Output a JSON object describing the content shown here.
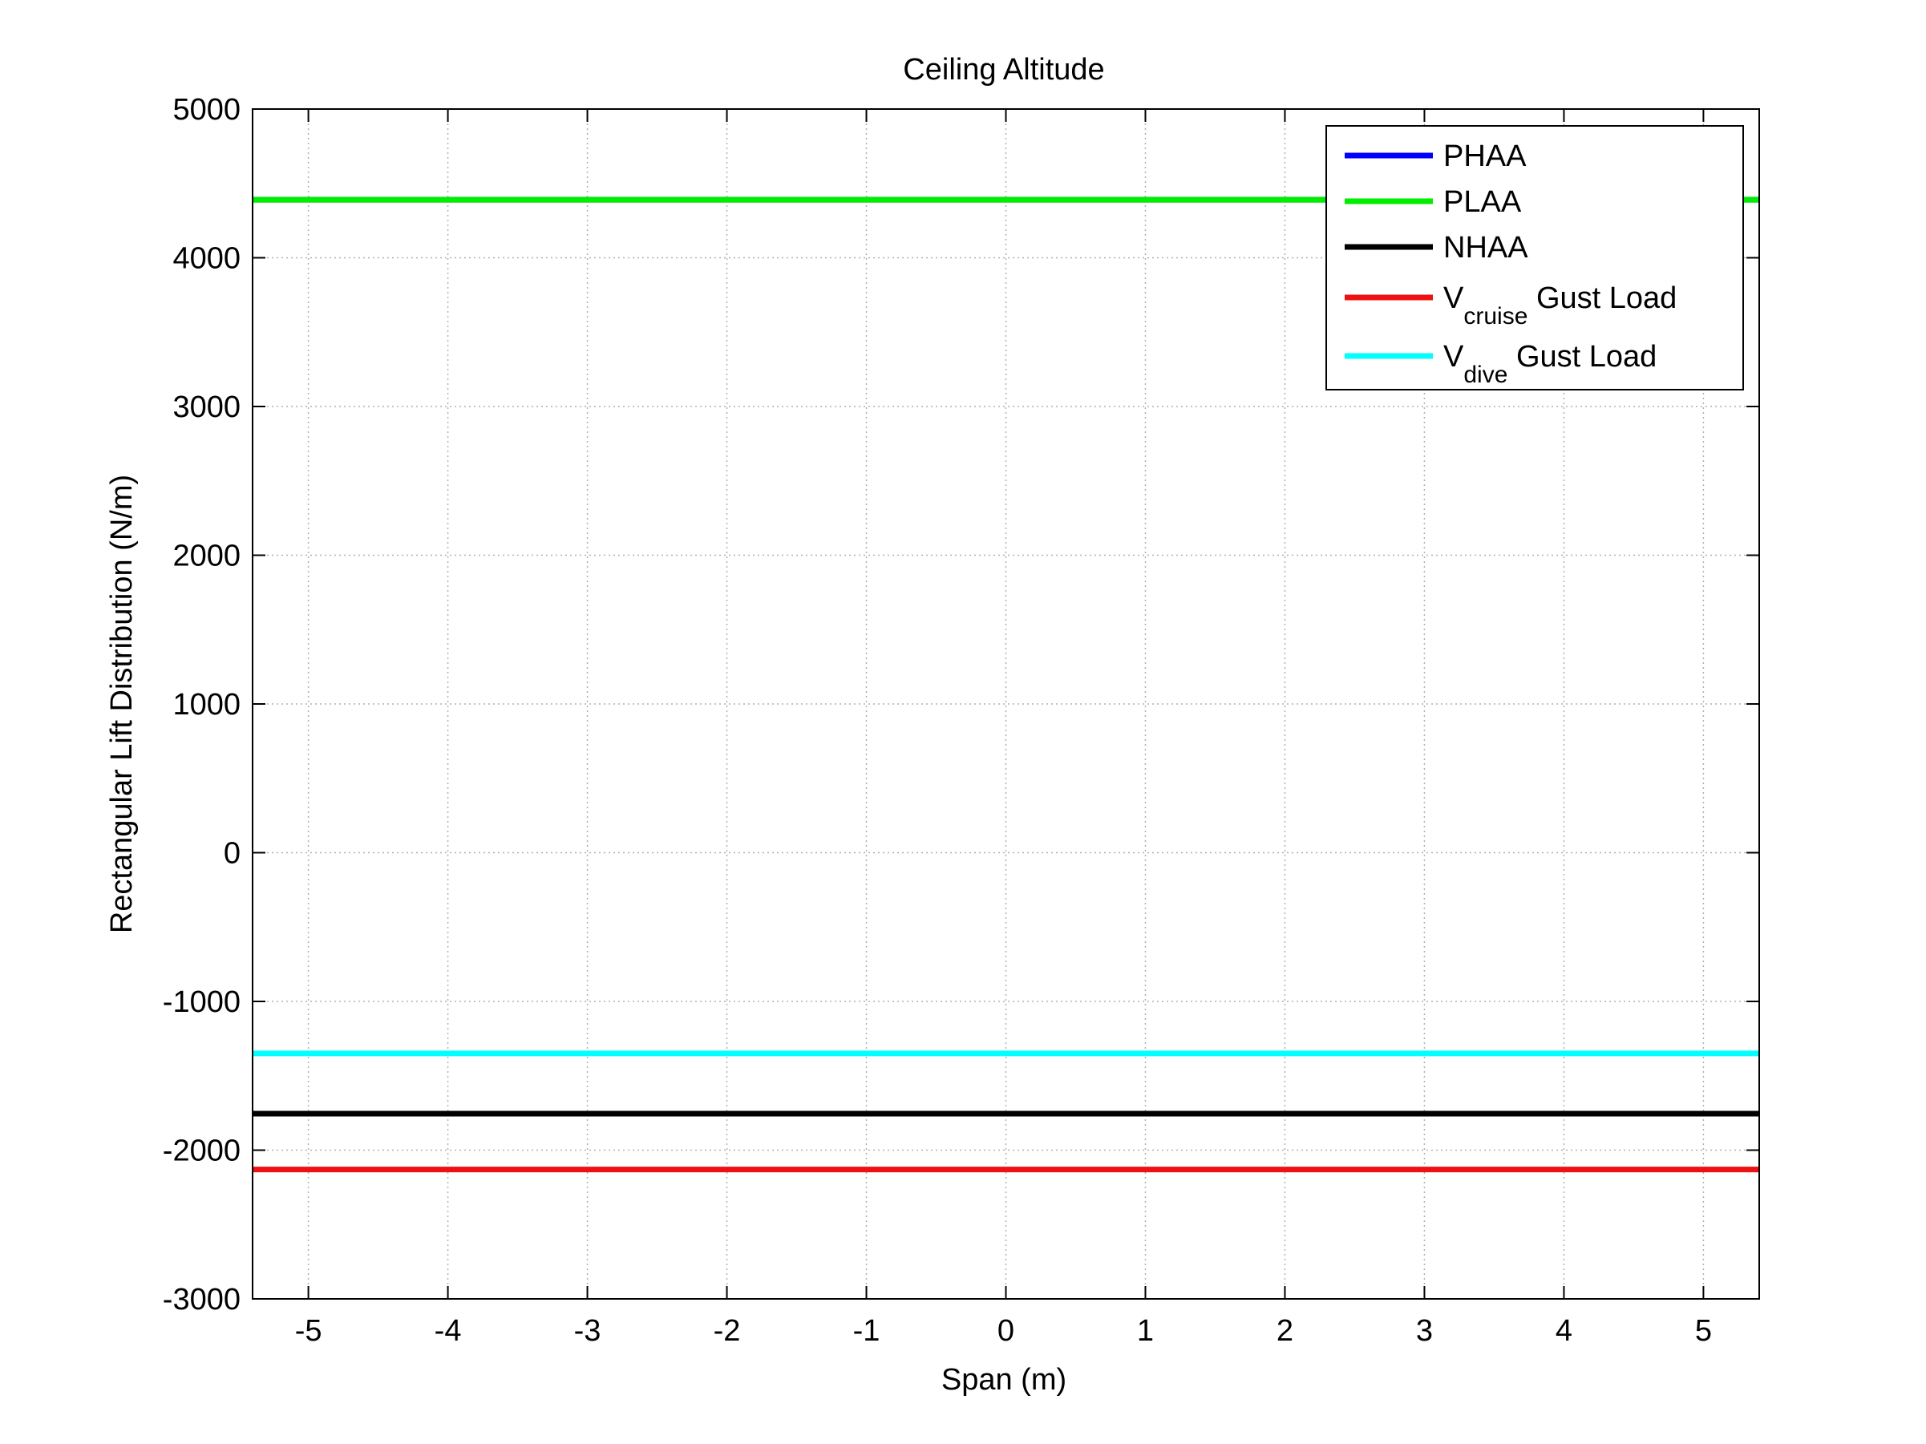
{
  "chart_data": {
    "type": "line",
    "title": "Ceiling Altitude",
    "xlabel": "Span (m)",
    "ylabel": "Rectangular Lift Distribution (N/m)",
    "xlim": [
      -5.4,
      5.4
    ],
    "ylim": [
      -3000,
      5000
    ],
    "xticks": [
      -5,
      -4,
      -3,
      -2,
      -1,
      0,
      1,
      2,
      3,
      4,
      5
    ],
    "xtick_labels": [
      "-5",
      "-4",
      "-3",
      "-2",
      "-1",
      "0",
      "1",
      "2",
      "3",
      "4",
      "5"
    ],
    "yticks": [
      -3000,
      -2000,
      -1000,
      0,
      1000,
      2000,
      3000,
      4000,
      5000
    ],
    "ytick_labels": [
      "-3000",
      "-2000",
      "-1000",
      "0",
      "1000",
      "2000",
      "3000",
      "4000",
      "5000"
    ],
    "grid": true,
    "legend_position": "top-right",
    "series": [
      {
        "name": "PHAA",
        "legend_main": "PHAA",
        "legend_sub": "",
        "legend_suffix": "",
        "color": "#0000ff",
        "x": [
          -5.4,
          5.4
        ],
        "y": [
          4390,
          4390
        ]
      },
      {
        "name": "PLAA",
        "legend_main": "PLAA",
        "legend_sub": "",
        "legend_suffix": "",
        "color": "#00ee00",
        "x": [
          -5.4,
          5.4
        ],
        "y": [
          4390,
          4390
        ]
      },
      {
        "name": "NHAA",
        "legend_main": "NHAA",
        "legend_sub": "",
        "legend_suffix": "",
        "color": "#000000",
        "x": [
          -5.4,
          5.4
        ],
        "y": [
          -1755,
          -1755
        ]
      },
      {
        "name": "Vcruise Gust Load",
        "legend_main": "V",
        "legend_sub": "cruise",
        "legend_suffix": " Gust Load",
        "color": "#ee1111",
        "x": [
          -5.4,
          5.4
        ],
        "y": [
          -2130,
          -2130
        ]
      },
      {
        "name": "Vdive Gust Load",
        "legend_main": "V",
        "legend_sub": "dive",
        "legend_suffix": " Gust Load",
        "color": "#00ffff",
        "x": [
          -5.4,
          5.4
        ],
        "y": [
          -1350,
          -1350
        ]
      }
    ]
  }
}
